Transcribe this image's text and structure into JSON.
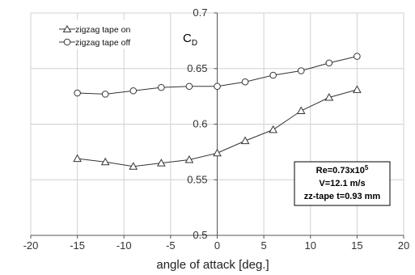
{
  "chart_data": {
    "type": "line",
    "xlabel": "angle of attack [deg.]",
    "ylabel": "C",
    "ylabel_subscript": "D",
    "xlim": [
      -20,
      20
    ],
    "ylim": [
      0.5,
      0.7
    ],
    "x_ticks": [
      -20,
      -15,
      -10,
      -5,
      0,
      5,
      10,
      15,
      20
    ],
    "x_tick_labels": [
      "-20",
      "-15",
      "-10",
      "-5",
      "0",
      "5",
      "10",
      "15",
      "20"
    ],
    "y_ticks": [
      0.5,
      0.55,
      0.6,
      0.65,
      0.7
    ],
    "y_tick_labels": [
      "0.5",
      "0.55",
      "0.6",
      "0.65",
      "0.7"
    ],
    "grid": true,
    "legend_position": "top-left",
    "series": [
      {
        "name": "zigzag tape on",
        "marker": "triangle",
        "x": [
          -15,
          -12,
          -9,
          -6,
          -3,
          0,
          3,
          6,
          9,
          12,
          15
        ],
        "y": [
          0.569,
          0.566,
          0.562,
          0.565,
          0.568,
          0.574,
          0.585,
          0.595,
          0.612,
          0.624,
          0.631
        ]
      },
      {
        "name": "zigzag tape off",
        "marker": "circle",
        "x": [
          -15,
          -12,
          -9,
          -6,
          -3,
          0,
          3,
          6,
          9,
          12,
          15
        ],
        "y": [
          0.628,
          0.627,
          0.63,
          0.633,
          0.634,
          0.634,
          0.638,
          0.644,
          0.648,
          0.655,
          0.661
        ]
      }
    ],
    "annotation": {
      "line1_base": "Re=0.73x10",
      "line1_sup": "5",
      "line2": "V=12.1 m/s",
      "line3": "zz-tape t=0.93 mm"
    }
  }
}
